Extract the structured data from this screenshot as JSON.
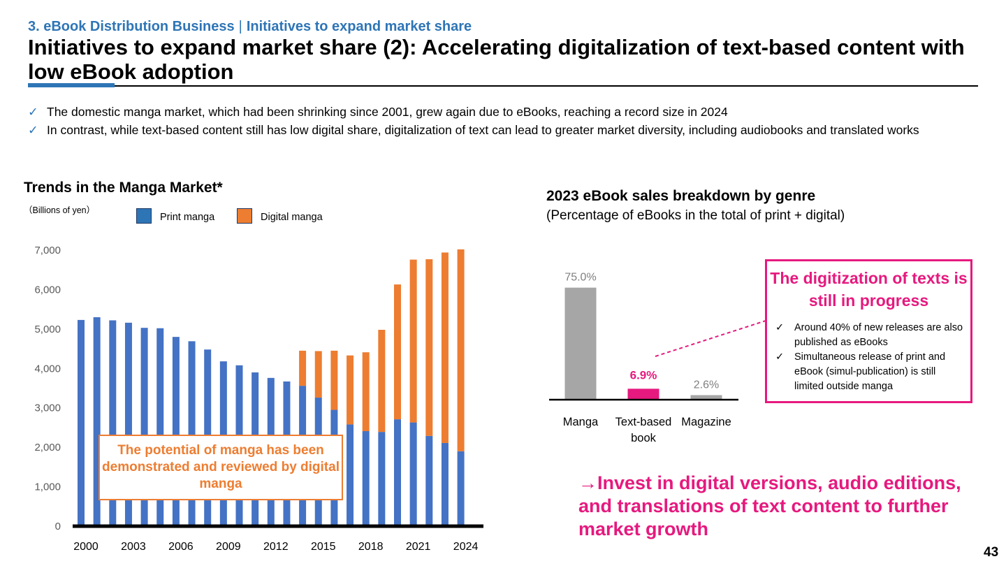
{
  "header": {
    "section": "3. eBook Distribution Business",
    "separator": "|",
    "subsection": "Initiatives to expand market share",
    "title": "Initiatives to expand market share (2): Accelerating digitalization of text-based content with low eBook adoption"
  },
  "bullets": [
    {
      "check": "✓",
      "text": "The domestic manga market, which had been shrinking since 2001, grew again due to eBooks, reaching a record size in 2024"
    },
    {
      "check": "✓",
      "text": "In contrast, while text-based content still has low digital share, digitalization of text can lead to greater market diversity, including audiobooks and translated works"
    }
  ],
  "left_chart": {
    "title": "Trends in the Manga Market*",
    "unit": "（Billions of yen）",
    "legend": [
      {
        "label": "Print manga",
        "color": "#2e75b6"
      },
      {
        "label": "Digital manga",
        "color": "#ed7d31"
      }
    ],
    "callout": "The potential of manga has been demonstrated and reviewed by digital manga"
  },
  "right_chart": {
    "title": "2023 eBook sales breakdown by genre",
    "subtitle": "(Percentage of eBooks in the total of print + digital)",
    "callout": {
      "heading": "The digitization of texts is still in progress",
      "items": [
        {
          "tick": "✓",
          "text": "Around 40% of new releases are also published as eBooks"
        },
        {
          "tick": "✓",
          "text": "Simultaneous release of print and eBook (simul-publication) is still limited outside manga"
        }
      ]
    }
  },
  "conclusion": "→Invest in digital versions, audio editions, and translations of text content to further market growth",
  "page_number": "43",
  "chart_data": [
    {
      "type": "bar",
      "stacked": true,
      "title": "Trends in the Manga Market*",
      "ylabel": "（Billions of yen）",
      "ylim": [
        0,
        7000
      ],
      "yticks": [
        "0",
        "1,000",
        "2,000",
        "3,000",
        "4,000",
        "5,000",
        "6,000",
        "7,000"
      ],
      "ytick_values": [
        0,
        1000,
        2000,
        3000,
        4000,
        5000,
        6000,
        7000
      ],
      "x": [
        2000,
        2001,
        2002,
        2003,
        2004,
        2005,
        2006,
        2007,
        2008,
        2009,
        2010,
        2011,
        2012,
        2013,
        2014,
        2015,
        2016,
        2017,
        2018,
        2019,
        2020,
        2021,
        2022,
        2023,
        2024
      ],
      "xtick_labels": [
        "2000",
        "2003",
        "2006",
        "2009",
        "2012",
        "2015",
        "2018",
        "2021",
        "2024"
      ],
      "grid": false,
      "series": [
        {
          "name": "Print manga",
          "color": "#4472c4",
          "values": [
            5230,
            5300,
            5220,
            5160,
            5030,
            5020,
            4800,
            4690,
            4480,
            4180,
            4080,
            3900,
            3760,
            3670,
            3560,
            3260,
            2950,
            2580,
            2410,
            2390,
            2710,
            2630,
            2290,
            2110,
            1900
          ]
        },
        {
          "name": "Digital manga",
          "color": "#ed7d31",
          "values": [
            0,
            0,
            0,
            0,
            0,
            0,
            0,
            0,
            0,
            0,
            0,
            0,
            0,
            0,
            890,
            1180,
            1500,
            1750,
            2000,
            2590,
            3420,
            4130,
            4480,
            4830,
            5120
          ]
        }
      ]
    },
    {
      "type": "bar",
      "title": "2023 eBook sales breakdown by genre",
      "subtitle": "(Percentage of eBooks in the total of print + digital)",
      "categories": [
        "Manga",
        "Text-based book",
        "Magazine"
      ],
      "category_lines": [
        [
          "Manga"
        ],
        [
          "Text-based",
          "book"
        ],
        [
          "Magazine"
        ]
      ],
      "values": [
        75.0,
        6.9,
        2.6
      ],
      "value_labels": [
        "75.0%",
        "6.9%",
        "2.6%"
      ],
      "colors": [
        "#a6a6a6",
        "#e6197e",
        "#a6a6a6"
      ],
      "label_colors": [
        "#7f7f7f",
        "#e6197e",
        "#7f7f7f"
      ],
      "ylim": [
        0,
        80
      ],
      "grid": false
    }
  ]
}
